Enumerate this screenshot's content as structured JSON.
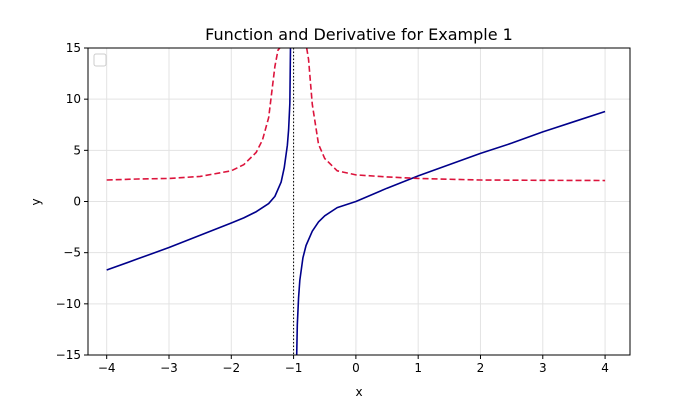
{
  "chart_data": {
    "type": "line",
    "title": "Function and Derivative for Example 1",
    "xlabel": "x",
    "ylabel": "y",
    "xlim": [
      -4.3,
      4.4
    ],
    "ylim": [
      -15,
      15
    ],
    "xticks": [
      -4,
      -3,
      -2,
      -1,
      0,
      1,
      2,
      3,
      4
    ],
    "yticks": [
      -15,
      -10,
      -5,
      0,
      5,
      10,
      15
    ],
    "grid": true,
    "legend": "upper-left (empty)",
    "asymptote_x": -1,
    "series": [
      {
        "style": "solid",
        "color": "#00008b",
        "x": [
          -4,
          -3.5,
          -3,
          -2.5,
          -2,
          -1.8,
          -1.6,
          -1.4,
          -1.3,
          -1.2,
          -1.15,
          -1.1,
          -1.08,
          -1.06,
          -1.05,
          -0.95,
          -0.94,
          -0.92,
          -0.9,
          -0.85,
          -0.8,
          -0.7,
          -0.6,
          -0.5,
          -0.3,
          0,
          0.5,
          1,
          1.5,
          2,
          2.5,
          3,
          3.5,
          4
        ],
        "y": [
          -6.7,
          -5.6,
          -4.5,
          -3.3,
          -2.1,
          -1.6,
          -1.0,
          -0.2,
          0.5,
          1.9,
          3.3,
          5.5,
          7.0,
          9.6,
          15.0,
          -15.0,
          -12.0,
          -9.4,
          -7.7,
          -5.5,
          -4.3,
          -2.9,
          -2.0,
          -1.4,
          -0.6,
          0.0,
          1.3,
          2.5,
          3.6,
          4.7,
          5.7,
          6.8,
          7.8,
          8.8
        ]
      },
      {
        "style": "dashed",
        "color": "#dc143c",
        "x": [
          -4,
          -3.5,
          -3,
          -2.5,
          -2,
          -1.8,
          -1.6,
          -1.5,
          -1.4,
          -1.3,
          -1.25,
          -1.22,
          -0.79,
          -0.76,
          -0.7,
          -0.6,
          -0.5,
          -0.3,
          0,
          0.5,
          1,
          2,
          3,
          4
        ],
        "y": [
          2.1,
          2.2,
          2.25,
          2.45,
          3.0,
          3.6,
          4.8,
          6.0,
          8.2,
          13.2,
          14.8,
          15.0,
          15.0,
          13.9,
          9.5,
          5.6,
          4.2,
          3.0,
          2.6,
          2.4,
          2.25,
          2.1,
          2.07,
          2.05
        ]
      }
    ]
  }
}
